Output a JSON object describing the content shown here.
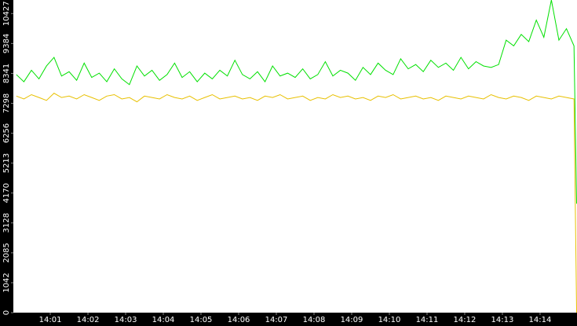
{
  "chart_data": {
    "type": "line",
    "x": [
      0.1,
      0.3,
      0.5,
      0.7,
      0.9,
      1.1,
      1.3,
      1.5,
      1.7,
      1.9,
      2.1,
      2.3,
      2.5,
      2.7,
      2.9,
      3.1,
      3.3,
      3.5,
      3.7,
      3.9,
      4.1,
      4.3,
      4.5,
      4.7,
      4.9,
      5.1,
      5.3,
      5.5,
      5.7,
      5.9,
      6.1,
      6.3,
      6.5,
      6.7,
      6.9,
      7.1,
      7.3,
      7.5,
      7.7,
      7.9,
      8.1,
      8.3,
      8.5,
      8.7,
      8.9,
      9.1,
      9.3,
      9.5,
      9.7,
      9.9,
      10.1,
      10.3,
      10.5,
      10.7,
      10.9,
      11.1,
      11.3,
      11.5,
      11.7,
      11.9,
      12.1,
      12.3,
      12.5,
      12.7,
      12.9,
      13.1,
      13.3,
      13.5,
      13.7,
      13.9,
      14.1,
      14.3,
      14.5,
      14.7,
      14.9,
      14.97
    ],
    "series": [
      {
        "color": "#00e000",
        "values": [
          8300,
          8050,
          8450,
          8150,
          8600,
          8900,
          8250,
          8400,
          8100,
          8700,
          8200,
          8350,
          8050,
          8500,
          8150,
          7950,
          8600,
          8250,
          8450,
          8100,
          8300,
          8700,
          8200,
          8400,
          8050,
          8350,
          8150,
          8450,
          8250,
          8800,
          8300,
          8150,
          8400,
          8050,
          8600,
          8250,
          8350,
          8200,
          8500,
          8150,
          8300,
          8750,
          8250,
          8450,
          8350,
          8100,
          8550,
          8300,
          8700,
          8450,
          8300,
          8850,
          8500,
          8650,
          8400,
          8800,
          8550,
          8700,
          8450,
          8900,
          8500,
          8750,
          8600,
          8550,
          8650,
          9500,
          9300,
          9700,
          9450,
          10200,
          9600,
          10900,
          9500,
          9900,
          9300,
          3800
        ]
      },
      {
        "color": "#e8c000",
        "values": [
          7550,
          7450,
          7600,
          7500,
          7400,
          7650,
          7500,
          7550,
          7450,
          7600,
          7500,
          7400,
          7550,
          7600,
          7450,
          7500,
          7350,
          7550,
          7500,
          7450,
          7600,
          7500,
          7450,
          7550,
          7400,
          7500,
          7600,
          7450,
          7500,
          7550,
          7450,
          7500,
          7400,
          7550,
          7500,
          7600,
          7450,
          7500,
          7550,
          7400,
          7500,
          7450,
          7600,
          7500,
          7550,
          7450,
          7500,
          7400,
          7550,
          7500,
          7600,
          7450,
          7500,
          7550,
          7450,
          7500,
          7400,
          7550,
          7500,
          7450,
          7550,
          7500,
          7450,
          7600,
          7500,
          7450,
          7550,
          7500,
          7400,
          7550,
          7500,
          7450,
          7550,
          7500,
          7450,
          0
        ]
      }
    ],
    "xlim": [
      0.02,
      14.98
    ],
    "xticks": [
      {
        "value": 1,
        "label": "14:01"
      },
      {
        "value": 2,
        "label": "14:02"
      },
      {
        "value": 3,
        "label": "14:03"
      },
      {
        "value": 4,
        "label": "14:04"
      },
      {
        "value": 5,
        "label": "14:05"
      },
      {
        "value": 6,
        "label": "14:06"
      },
      {
        "value": 7,
        "label": "14:07"
      },
      {
        "value": 8,
        "label": "14:08"
      },
      {
        "value": 9,
        "label": "14:09"
      },
      {
        "value": 10,
        "label": "14:10"
      },
      {
        "value": 11,
        "label": "14:11"
      },
      {
        "value": 12,
        "label": "14:12"
      },
      {
        "value": 13,
        "label": "14:13"
      },
      {
        "value": 14,
        "label": "14:14"
      }
    ],
    "ylim": [
      0,
      10900
    ],
    "yticks": [
      0,
      1042,
      2085,
      3128,
      4170,
      5213,
      6256,
      7298,
      8341,
      9384,
      10427
    ]
  }
}
